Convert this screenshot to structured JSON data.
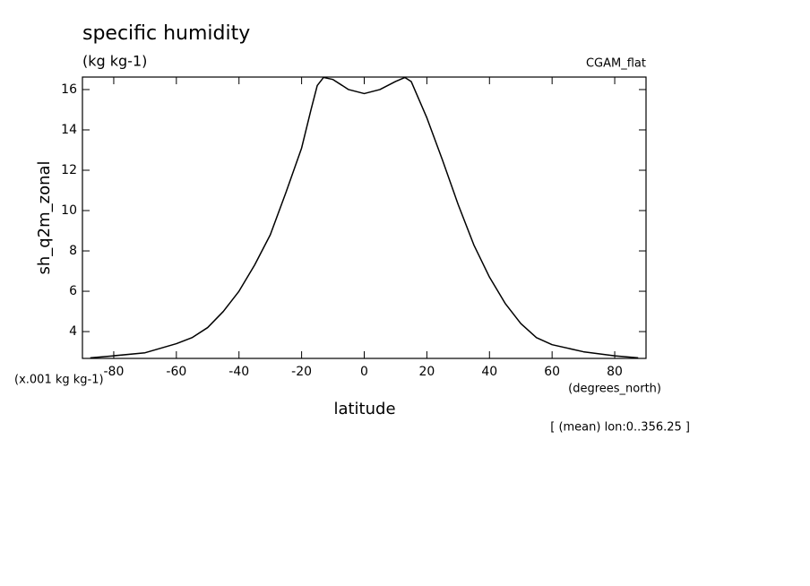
{
  "chart_data": {
    "type": "line",
    "title": "specific humidity",
    "subtitle": "(kg kg-1)",
    "annotation_right": "CGAM_flat",
    "ylabel": "sh_q2m_zonal",
    "yunits": "(x.001 kg kg-1)",
    "xlabel": "latitude",
    "xunits": "(degrees_north)",
    "footnote": "[ (mean) lon:0..356.25 ]",
    "color": "#000000",
    "x": [
      -87.5,
      -80,
      -70,
      -60,
      -55,
      -50,
      -45,
      -40,
      -35,
      -30,
      -25,
      -20,
      -17,
      -15,
      -13,
      -10,
      -5,
      0,
      5,
      10,
      13,
      15,
      20,
      25,
      30,
      35,
      40,
      45,
      50,
      55,
      60,
      70,
      80,
      87.5
    ],
    "values": [
      2.7,
      2.8,
      2.95,
      3.4,
      3.7,
      4.2,
      5.0,
      6.0,
      7.3,
      8.8,
      10.9,
      13.1,
      15.0,
      16.2,
      16.6,
      16.5,
      16.0,
      15.8,
      16.0,
      16.4,
      16.6,
      16.4,
      14.6,
      12.5,
      10.3,
      8.3,
      6.7,
      5.4,
      4.4,
      3.7,
      3.35,
      3.0,
      2.8,
      2.7
    ],
    "xlim": [
      -90,
      90
    ],
    "ylim": [
      2.67,
      16.62
    ],
    "xticks": [
      -80,
      -60,
      -40,
      -20,
      0,
      20,
      40,
      60,
      80
    ],
    "yticks": [
      4,
      6,
      8,
      10,
      12,
      14,
      16
    ]
  }
}
